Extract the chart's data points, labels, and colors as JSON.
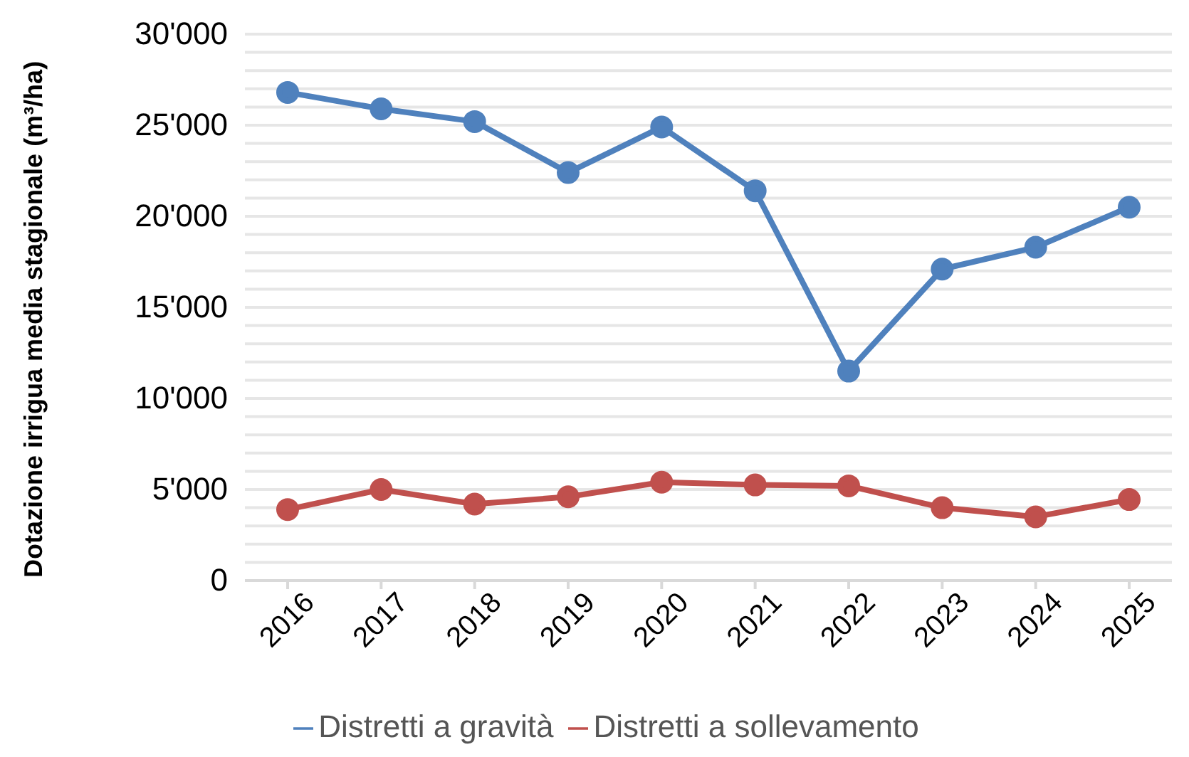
{
  "chart_data": {
    "type": "line",
    "ylabel": "Dotazione irrigua media stagionale (m³/ha)",
    "categories": [
      "2016",
      "2017",
      "2018",
      "2019",
      "2020",
      "2021",
      "2022",
      "2023",
      "2024",
      "2025"
    ],
    "series": [
      {
        "name": "Distretti a gravità",
        "color": "#4f81bd",
        "values": [
          26800,
          25900,
          25200,
          22400,
          24900,
          21400,
          11500,
          17100,
          18300,
          20500
        ]
      },
      {
        "name": "Distretti a sollevamento",
        "color": "#c0504d",
        "values": [
          3900,
          5000,
          4200,
          4600,
          5400,
          5250,
          5200,
          4000,
          3500,
          4450
        ]
      }
    ],
    "ylim": [
      0,
      30000
    ],
    "yticks": [
      0,
      {
        "value": 1000,
        "label": null
      },
      {
        "value": 2000,
        "label": null
      },
      {
        "value": 3000,
        "label": null
      },
      {
        "value": 4000,
        "label": null
      },
      {
        "value": 5000,
        "label": "5'000"
      },
      {
        "value": 6000,
        "label": null
      },
      {
        "value": 7000,
        "label": null
      },
      {
        "value": 8000,
        "label": null
      },
      {
        "value": 9000,
        "label": null
      },
      {
        "value": 10000,
        "label": "10'000"
      },
      {
        "value": 11000,
        "label": null
      },
      {
        "value": 12000,
        "label": null
      },
      {
        "value": 13000,
        "label": null
      },
      {
        "value": 14000,
        "label": null
      },
      {
        "value": 15000,
        "label": "15'000"
      },
      {
        "value": 16000,
        "label": null
      },
      {
        "value": 17000,
        "label": null
      },
      {
        "value": 18000,
        "label": null
      },
      {
        "value": 19000,
        "label": null
      },
      {
        "value": 20000,
        "label": "20'000"
      },
      {
        "value": 21000,
        "label": null
      },
      {
        "value": 22000,
        "label": null
      },
      {
        "value": 23000,
        "label": null
      },
      {
        "value": 24000,
        "label": null
      },
      {
        "value": 25000,
        "label": "25'000"
      },
      {
        "value": 26000,
        "label": null
      },
      {
        "value": 27000,
        "label": null
      },
      {
        "value": 28000,
        "label": null
      },
      {
        "value": 29000,
        "label": null
      },
      {
        "value": 30000,
        "label": "30'000"
      }
    ],
    "grid": "y",
    "legend": "bottom",
    "marker": "circle",
    "line_style": "solid"
  }
}
